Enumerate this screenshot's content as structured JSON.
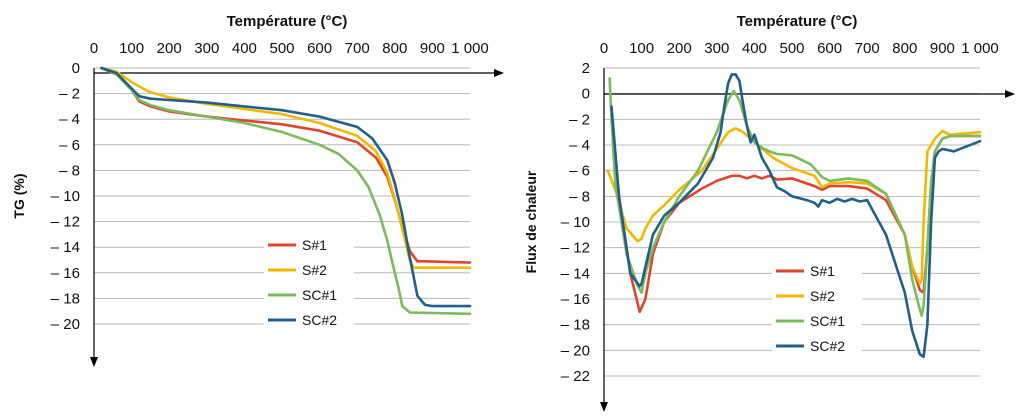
{
  "chart_data": [
    {
      "type": "line",
      "title": "Température (°C)",
      "xlabel": "Température (°C)",
      "ylabel": "TG (%)",
      "xlim": [
        0,
        1000
      ],
      "ylim": [
        -20,
        0
      ],
      "x_ticks": [
        "0",
        "100",
        "200",
        "300",
        "400",
        "500",
        "600",
        "700",
        "800",
        "900",
        "1 000"
      ],
      "y_ticks": [
        "0",
        "– 2",
        "– 4",
        "– 6",
        "– 8",
        "– 10",
        "– 12",
        "– 14",
        "– 16",
        "– 18",
        "– 20"
      ],
      "grid": true,
      "legend_position": "bottom-right",
      "series": [
        {
          "name": "S#1",
          "color": "#e0452b",
          "x": [
            20,
            60,
            100,
            120,
            150,
            200,
            300,
            400,
            500,
            600,
            700,
            750,
            780,
            800,
            820,
            840,
            860,
            880,
            1000
          ],
          "y": [
            0,
            -0.5,
            -1.7,
            -2.6,
            -3.0,
            -3.4,
            -3.8,
            -4.1,
            -4.4,
            -4.9,
            -5.8,
            -7.0,
            -8.5,
            -10.3,
            -12.4,
            -14.3,
            -15.1,
            -15.1,
            -15.2
          ]
        },
        {
          "name": "S#2",
          "color": "#f2b800",
          "x": [
            20,
            60,
            100,
            130,
            150,
            200,
            300,
            400,
            500,
            600,
            700,
            750,
            780,
            800,
            820,
            840,
            850,
            870,
            1000
          ],
          "y": [
            0,
            -0.3,
            -1.1,
            -1.6,
            -1.9,
            -2.3,
            -2.8,
            -3.2,
            -3.6,
            -4.3,
            -5.3,
            -6.5,
            -8.2,
            -10.2,
            -12.6,
            -15.0,
            -15.6,
            -15.6,
            -15.6
          ]
        },
        {
          "name": "SC#1",
          "color": "#7dba5b",
          "x": [
            20,
            60,
            100,
            120,
            150,
            200,
            300,
            400,
            500,
            600,
            650,
            700,
            730,
            760,
            780,
            800,
            810,
            820,
            840,
            1000
          ],
          "y": [
            0,
            -0.5,
            -1.7,
            -2.5,
            -2.9,
            -3.3,
            -3.8,
            -4.3,
            -5.0,
            -6.0,
            -6.7,
            -8.0,
            -9.3,
            -11.5,
            -13.5,
            -16.0,
            -17.2,
            -18.6,
            -19.1,
            -19.2
          ]
        },
        {
          "name": "SC#2",
          "color": "#1f5f8b",
          "x": [
            20,
            60,
            100,
            120,
            150,
            200,
            300,
            400,
            500,
            600,
            700,
            740,
            780,
            800,
            820,
            840,
            860,
            880,
            900,
            1000
          ],
          "y": [
            0,
            -0.4,
            -1.6,
            -2.2,
            -2.4,
            -2.5,
            -2.7,
            -3.0,
            -3.3,
            -3.8,
            -4.6,
            -5.5,
            -7.2,
            -9.0,
            -11.5,
            -14.8,
            -17.8,
            -18.5,
            -18.6,
            -18.6
          ]
        }
      ]
    },
    {
      "type": "line",
      "title": "Température (°C)",
      "xlabel": "Température (°C)",
      "ylabel": "Flux de chaleur",
      "xlim": [
        0,
        1000
      ],
      "ylim": [
        -22,
        2
      ],
      "x_ticks": [
        "0",
        "100",
        "200",
        "300",
        "400",
        "500",
        "600",
        "700",
        "800",
        "900",
        "1 000"
      ],
      "y_ticks": [
        "2",
        "0",
        "– 2",
        "– 4",
        "– 6",
        "– 8",
        "– 10",
        "– 12",
        "– 14",
        "– 16",
        "– 18",
        "– 20",
        "– 22"
      ],
      "grid": true,
      "legend_position": "bottom-right",
      "series": [
        {
          "name": "S#1",
          "color": "#e0452b",
          "x": [
            20,
            40,
            70,
            95,
            110,
            130,
            160,
            200,
            260,
            300,
            340,
            360,
            380,
            400,
            420,
            440,
            460,
            500,
            560,
            580,
            600,
            650,
            700,
            750,
            800,
            820,
            840,
            850,
            860,
            870,
            880,
            900,
            920,
            1000
          ],
          "y": [
            -1.5,
            -8.0,
            -14.0,
            -17.0,
            -16.0,
            -12.5,
            -10.0,
            -8.5,
            -7.4,
            -6.8,
            -6.4,
            -6.4,
            -6.6,
            -6.4,
            -6.6,
            -6.4,
            -6.7,
            -6.6,
            -7.2,
            -7.5,
            -7.2,
            -7.2,
            -7.4,
            -8.3,
            -11.0,
            -13.5,
            -15.3,
            -15.5,
            -12.0,
            -7.0,
            -4.5,
            -3.5,
            -3.3,
            -3.3
          ]
        },
        {
          "name": "S#2",
          "color": "#f2b800",
          "x": [
            10,
            30,
            60,
            90,
            100,
            110,
            130,
            160,
            200,
            260,
            300,
            330,
            350,
            370,
            400,
            450,
            500,
            560,
            580,
            600,
            650,
            700,
            750,
            800,
            820,
            840,
            845,
            850,
            860,
            880,
            900,
            920,
            1000
          ],
          "y": [
            -6.0,
            -7.5,
            -10.5,
            -11.5,
            -11.3,
            -10.5,
            -9.5,
            -8.7,
            -7.5,
            -6.0,
            -4.3,
            -3.0,
            -2.7,
            -3.0,
            -3.8,
            -5.0,
            -5.8,
            -6.4,
            -7.3,
            -7.0,
            -6.9,
            -7.0,
            -7.8,
            -11.0,
            -13.5,
            -14.8,
            -14.5,
            -10.0,
            -4.5,
            -3.5,
            -2.9,
            -3.2,
            -3.0
          ]
        },
        {
          "name": "SC#1",
          "color": "#7dba5b",
          "x": [
            15,
            20,
            30,
            60,
            90,
            100,
            110,
            130,
            160,
            200,
            250,
            300,
            330,
            345,
            360,
            380,
            400,
            420,
            440,
            460,
            500,
            550,
            580,
            600,
            650,
            700,
            750,
            800,
            820,
            840,
            845,
            850,
            860,
            870,
            880,
            900,
            920,
            1000
          ],
          "y": [
            1.2,
            -2.0,
            -7.0,
            -12.5,
            -15.0,
            -15.5,
            -14.0,
            -12.0,
            -10.0,
            -8.0,
            -6.0,
            -3.0,
            -0.5,
            0.2,
            -0.5,
            -2.5,
            -3.8,
            -4.2,
            -4.5,
            -4.7,
            -4.8,
            -5.5,
            -6.5,
            -6.8,
            -6.6,
            -6.8,
            -7.8,
            -11.0,
            -14.5,
            -16.8,
            -17.3,
            -16.5,
            -12.0,
            -7.0,
            -4.5,
            -3.5,
            -3.3,
            -3.3
          ]
        },
        {
          "name": "SC#2",
          "color": "#1f5f8b",
          "x": [
            20,
            40,
            70,
            95,
            100,
            110,
            130,
            160,
            200,
            250,
            290,
            310,
            320,
            330,
            340,
            350,
            360,
            370,
            380,
            390,
            400,
            420,
            440,
            460,
            480,
            500,
            540,
            560,
            570,
            580,
            600,
            620,
            640,
            660,
            680,
            700,
            750,
            800,
            820,
            840,
            850,
            860,
            870,
            880,
            890,
            900,
            930,
            1000
          ],
          "y": [
            -1.0,
            -8.0,
            -14.0,
            -15.0,
            -14.8,
            -13.5,
            -11.0,
            -9.5,
            -8.5,
            -7.0,
            -5.0,
            -3.0,
            -1.0,
            0.8,
            1.5,
            1.5,
            1.0,
            -0.8,
            -2.5,
            -3.8,
            -3.2,
            -5.0,
            -6.0,
            -7.3,
            -7.6,
            -8.0,
            -8.3,
            -8.5,
            -8.8,
            -8.3,
            -8.5,
            -8.2,
            -8.4,
            -8.2,
            -8.4,
            -8.3,
            -11.0,
            -15.5,
            -18.5,
            -20.3,
            -20.5,
            -18.0,
            -10.0,
            -5.0,
            -4.5,
            -4.3,
            -4.5,
            -3.7
          ]
        }
      ]
    }
  ]
}
